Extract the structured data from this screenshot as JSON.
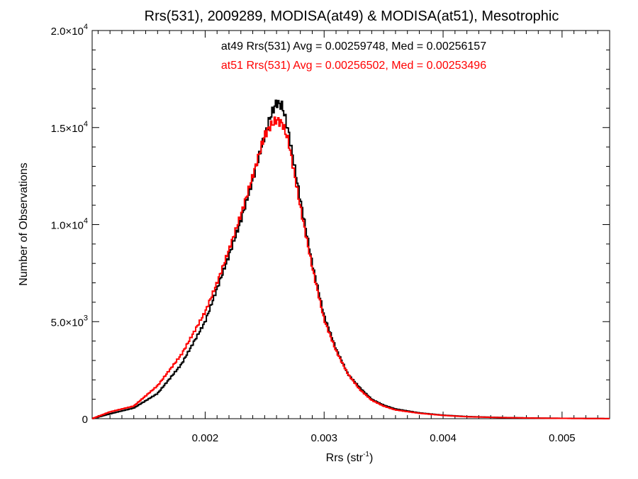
{
  "chart_data": {
    "type": "line",
    "title": "Rrs(531), 2009289, MODISA(at49) & MODISA(at51), Mesotrophic",
    "xlabel": "Rrs (str",
    "xlabel_sup": "-1",
    "xlabel_close": ")",
    "ylabel": "Number of Observations",
    "xlim": [
      0.00105,
      0.0054
    ],
    "ylim": [
      0,
      20000
    ],
    "x_ticks": [
      {
        "value": 0.002,
        "label": "0.002"
      },
      {
        "value": 0.003,
        "label": "0.003"
      },
      {
        "value": 0.004,
        "label": "0.004"
      },
      {
        "value": 0.005,
        "label": "0.005"
      }
    ],
    "y_ticks": [
      {
        "value": 0,
        "label": "0",
        "exp": ""
      },
      {
        "value": 5000,
        "label": "5.0×10",
        "exp": "3"
      },
      {
        "value": 10000,
        "label": "1.0×10",
        "exp": "4"
      },
      {
        "value": 15000,
        "label": "1.5×10",
        "exp": "4"
      },
      {
        "value": 20000,
        "label": "2.0×10",
        "exp": "4"
      }
    ],
    "annotations": [
      {
        "text": "at49 Rrs(531) Avg = 0.00259748, Med = 0.00256157",
        "color": "#000000"
      },
      {
        "text": "at51 Rrs(531) Avg = 0.00256502, Med = 0.00253496",
        "color": "#ff0000"
      }
    ],
    "series": [
      {
        "color": "#000000",
        "x": [
          0.00105,
          0.0012,
          0.0014,
          0.0016,
          0.0018,
          0.002,
          0.0021,
          0.0022,
          0.0023,
          0.0024,
          0.0025,
          0.00255,
          0.0026,
          0.00265,
          0.0027,
          0.0028,
          0.0029,
          0.003,
          0.0031,
          0.0032,
          0.0033,
          0.0034,
          0.0035,
          0.0036,
          0.0038,
          0.004,
          0.0042,
          0.0045,
          0.0048,
          0.0051,
          0.0054
        ],
        "y": [
          0,
          250,
          550,
          1300,
          2800,
          5000,
          6700,
          8400,
          10200,
          12300,
          14600,
          15600,
          16300,
          16100,
          14800,
          11300,
          8000,
          5300,
          3600,
          2300,
          1600,
          1000,
          700,
          500,
          300,
          180,
          110,
          60,
          30,
          15,
          5
        ]
      },
      {
        "color": "#ff0000",
        "x": [
          0.00105,
          0.0012,
          0.0013,
          0.0014,
          0.0016,
          0.0018,
          0.002,
          0.0021,
          0.0022,
          0.0023,
          0.0024,
          0.0025,
          0.00255,
          0.0026,
          0.00265,
          0.0027,
          0.0028,
          0.0029,
          0.003,
          0.0031,
          0.0032,
          0.0033,
          0.0034,
          0.0035,
          0.0036,
          0.0038,
          0.004,
          0.0042,
          0.0045,
          0.0048,
          0.0051,
          0.0054
        ],
        "y": [
          0,
          350,
          500,
          650,
          1700,
          3300,
          5500,
          7000,
          8700,
          10500,
          12500,
          14600,
          15100,
          15400,
          15200,
          14300,
          10900,
          7800,
          5100,
          3500,
          2300,
          1500,
          950,
          650,
          450,
          280,
          170,
          100,
          55,
          28,
          14,
          5
        ]
      }
    ]
  }
}
